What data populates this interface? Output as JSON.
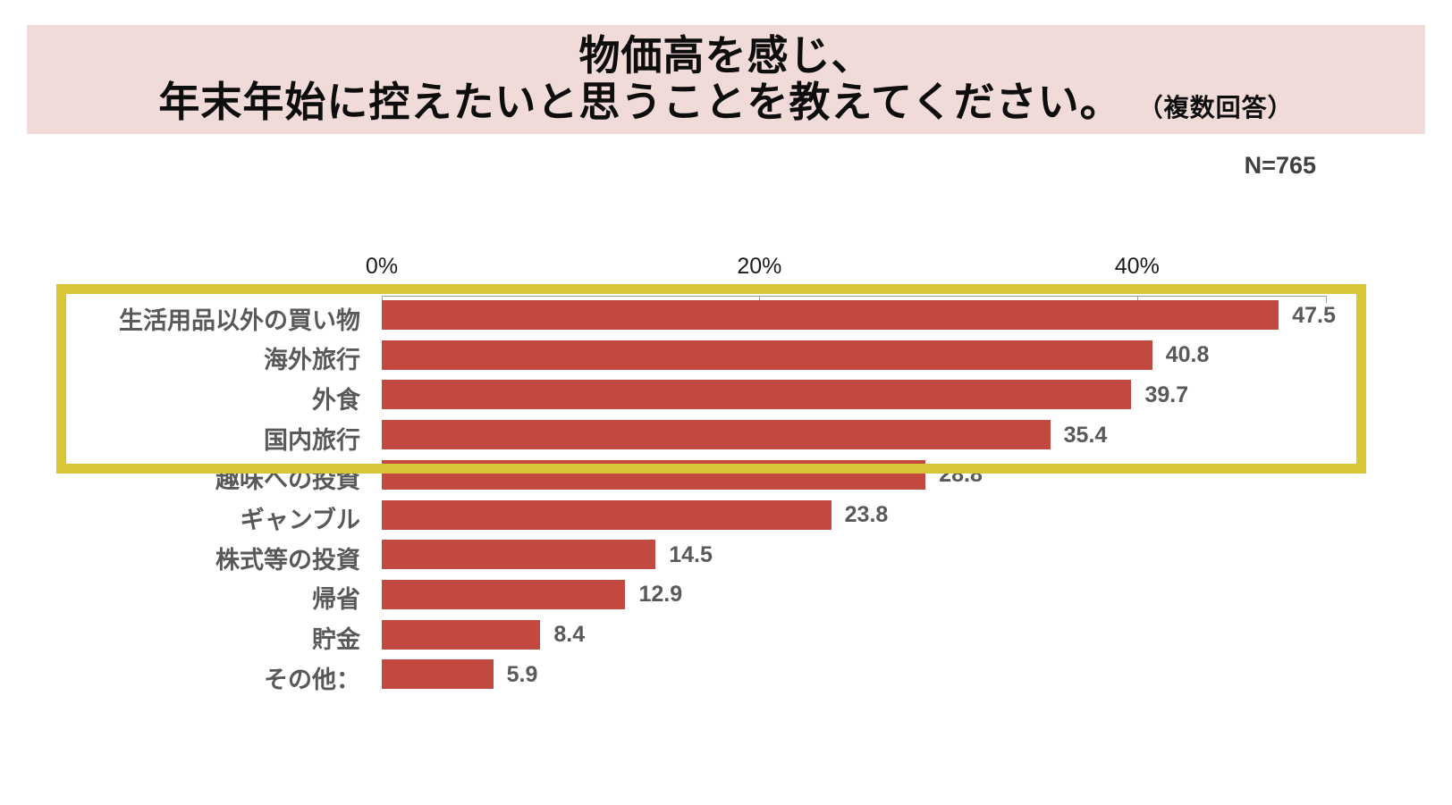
{
  "page": {
    "title_line1": "物価高を感じ、",
    "title_line2": "年末年始に控えたいと思うことを教えてください。",
    "title_note": "（複数回答）",
    "sample_label": "N=765"
  },
  "colors": {
    "banner_bg": "#f1dbd9",
    "bar": "#c2493f",
    "highlight_border": "#d9c636",
    "label_gray": "#595959",
    "axis_gray": "#9e9e9e",
    "title_black": "#0d0d0d"
  },
  "chart_data": {
    "type": "bar",
    "orientation": "horizontal",
    "title": "物価高を感じ、年末年始に控えたいと思うことを教えてください。（複数回答）",
    "sample_size": 765,
    "categories": [
      "生活用品以外の買い物",
      "海外旅行",
      "外食",
      "国内旅行",
      "趣味への投資",
      "ギャンブル",
      "株式等の投資",
      "帰省",
      "貯金",
      "その他："
    ],
    "values": [
      47.5,
      40.8,
      39.7,
      35.4,
      28.8,
      23.8,
      14.5,
      12.9,
      8.4,
      5.9
    ],
    "x_ticks": [
      {
        "value": 0,
        "label": "0%"
      },
      {
        "value": 20,
        "label": "20%"
      },
      {
        "value": 40,
        "label": "40%"
      }
    ],
    "xlim": [
      0,
      50
    ],
    "grid": false,
    "legend_position": "none",
    "highlighted_rows": [
      0,
      1,
      2,
      3
    ]
  }
}
